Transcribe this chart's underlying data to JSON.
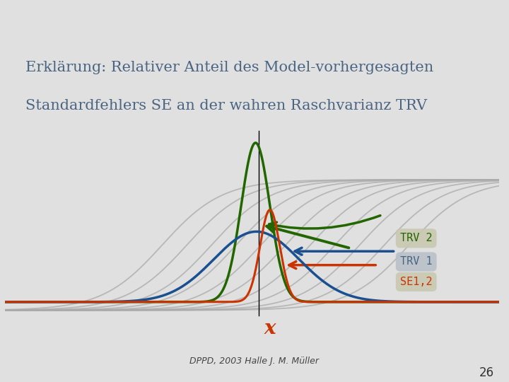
{
  "title_line1": "Erklärung: Relativer Anteil des Model-vorhergesagten",
  "title_line2": "Standardfehlers SE an der wahren Raschvarianz TRV",
  "slide_bg": "#e0e0e0",
  "header_color": "#a0aab8",
  "title_color": "#4a6482",
  "footer_text": "DPPD, 2003 Halle J. M. Müller",
  "page_number": "26",
  "label_trv2": "TRV 2",
  "label_trv1": "TRV 1",
  "label_se12": "SE1,2",
  "color_green": "#226600",
  "color_blue": "#1a5090",
  "color_orange": "#cc3300",
  "color_gray": "#aaaaaa",
  "label_bg": "#c8c8b0",
  "label_bg_blue": "#b8c0c8"
}
